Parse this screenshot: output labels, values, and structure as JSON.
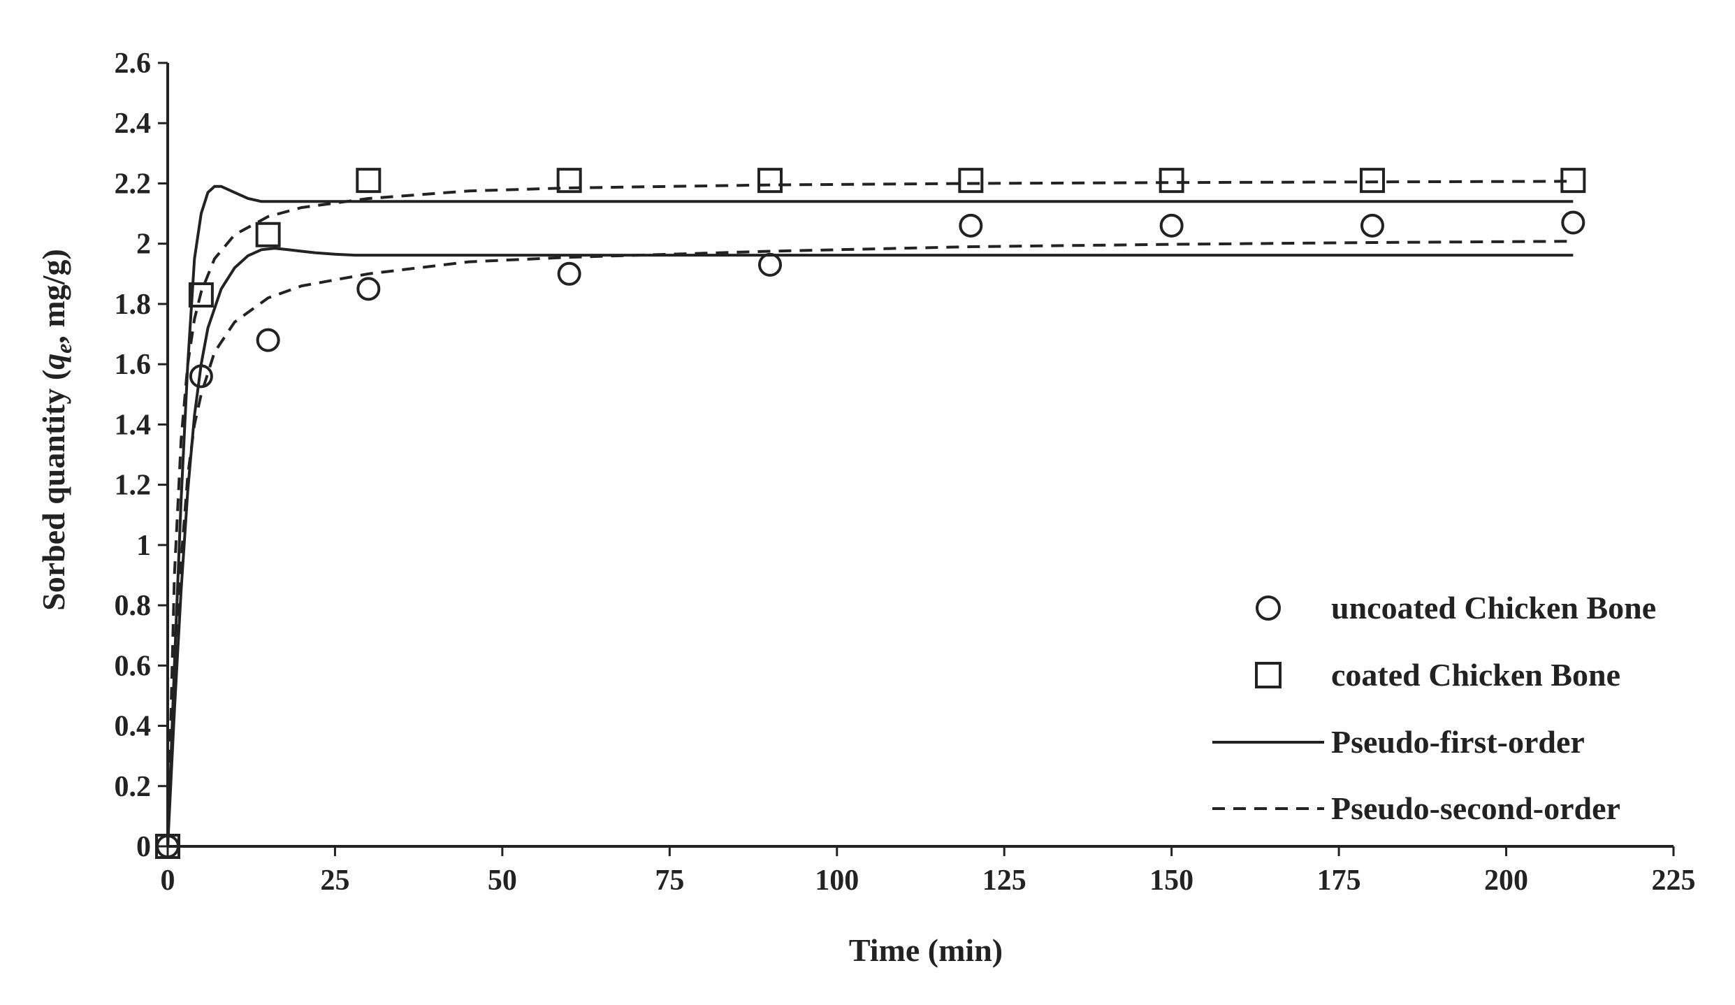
{
  "chart_data": {
    "type": "scatter",
    "xlabel": "Time (min)",
    "ylabel_parts": [
      "Sorbed quantity (",
      "q",
      "e",
      ", mg/g)"
    ],
    "xlim": [
      0,
      225
    ],
    "ylim": [
      0,
      2.6
    ],
    "x_ticks": [
      "0",
      "25",
      "50",
      "75",
      "100",
      "125",
      "150",
      "175",
      "200",
      "225"
    ],
    "y_ticks": [
      "0",
      "0.2",
      "0.4",
      "0.6",
      "0.8",
      "1",
      "1.2",
      "1.4",
      "1.6",
      "1.8",
      "2",
      "2.2",
      "2.4",
      "2.6"
    ],
    "legend_position": "right",
    "series": [
      {
        "name": "uncoated Chicken Bone",
        "marker": "circle",
        "x": [
          0,
          5,
          15,
          30,
          60,
          90,
          120,
          150,
          180,
          210
        ],
        "y": [
          0,
          1.56,
          1.68,
          1.85,
          1.9,
          1.93,
          2.06,
          2.06,
          2.06,
          2.07
        ]
      },
      {
        "name": "coated Chicken Bone",
        "marker": "square",
        "x": [
          0,
          5,
          15,
          30,
          60,
          90,
          120,
          150,
          180,
          210
        ],
        "y": [
          0,
          1.83,
          2.03,
          2.21,
          2.21,
          2.21,
          2.21,
          2.21,
          2.21,
          2.21
        ]
      }
    ],
    "fits": [
      {
        "name": "Pseudo-first-order",
        "style": "solid",
        "curves": [
          {
            "x": [
              0,
              1,
              2,
              3,
              4,
              5,
              6,
              8,
              10,
              12,
              14,
              16,
              18,
              20,
              22,
              25,
              28,
              30,
              40,
              60,
              100,
              150,
              210
            ],
            "y": [
              0,
              0.45,
              0.85,
              1.18,
              1.43,
              1.6,
              1.72,
              1.85,
              1.92,
              1.96,
              1.98,
              1.985,
              1.98,
              1.975,
              1.97,
              1.965,
              1.962,
              1.962,
              1.962,
              1.962,
              1.962,
              1.962,
              1.962
            ]
          },
          {
            "x": [
              0,
              1,
              2,
              3,
              4,
              5,
              6,
              7,
              8,
              9,
              10,
              12,
              14,
              15,
              20,
              30,
              60,
              100,
              150,
              210
            ],
            "y": [
              0,
              0.6,
              1.15,
              1.6,
              1.95,
              2.1,
              2.17,
              2.19,
              2.19,
              2.18,
              2.17,
              2.15,
              2.14,
              2.14,
              2.14,
              2.14,
              2.14,
              2.14,
              2.14,
              2.14
            ]
          }
        ]
      },
      {
        "name": "Pseudo-second-order",
        "style": "dashed",
        "curves": [
          {
            "x": [
              0,
              1,
              2,
              3,
              4,
              5,
              7,
              10,
              15,
              20,
              30,
              45,
              60,
              90,
              120,
              150,
              180,
              210
            ],
            "y": [
              0,
              0.55,
              0.95,
              1.23,
              1.4,
              1.5,
              1.64,
              1.74,
              1.82,
              1.86,
              1.9,
              1.94,
              1.955,
              1.975,
              1.99,
              1.998,
              2.004,
              2.008
            ]
          },
          {
            "x": [
              0,
              1,
              2,
              3,
              4,
              5,
              7,
              10,
              15,
              20,
              30,
              45,
              60,
              90,
              120,
              150,
              180,
              210
            ],
            "y": [
              0,
              0.9,
              1.35,
              1.6,
              1.75,
              1.84,
              1.95,
              2.03,
              2.09,
              2.12,
              2.15,
              2.175,
              2.185,
              2.195,
              2.2,
              2.203,
              2.205,
              2.207
            ]
          }
        ]
      }
    ]
  }
}
